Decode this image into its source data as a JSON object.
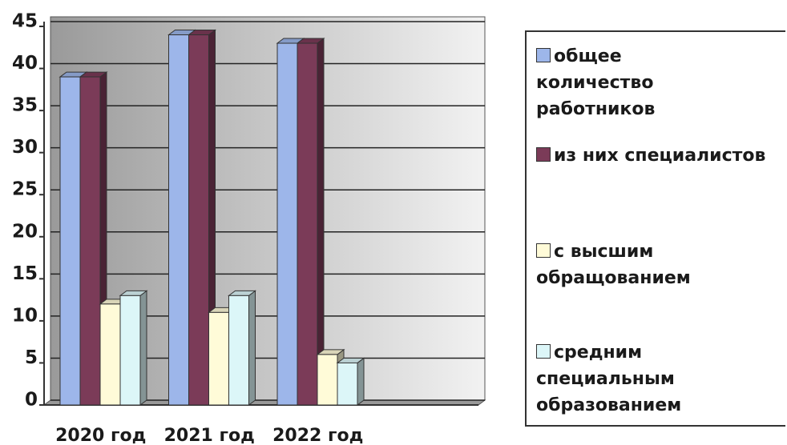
{
  "chart_data": {
    "type": "bar",
    "categories": [
      "2020 год",
      "2021 год",
      "2022 год",
      null
    ],
    "series": [
      {
        "name": "общее количество работников",
        "color": "#9db6ea",
        "values": [
          39,
          44,
          43,
          null
        ]
      },
      {
        "name": "из них специалистов",
        "color": "#7b3b58",
        "values": [
          39,
          44,
          43,
          null
        ]
      },
      {
        "name": "с высшим обращованием",
        "color": "#fffbd8",
        "values": [
          12,
          11,
          6,
          null
        ]
      },
      {
        "name": "средним специальным образованием",
        "color": "#dcf6f8",
        "values": [
          13,
          13,
          5,
          null
        ]
      }
    ],
    "ylim": [
      0,
      45
    ],
    "yticks": [
      0,
      5,
      10,
      15,
      20,
      25,
      30,
      35,
      40,
      45
    ],
    "grid": true,
    "legend": "right"
  }
}
